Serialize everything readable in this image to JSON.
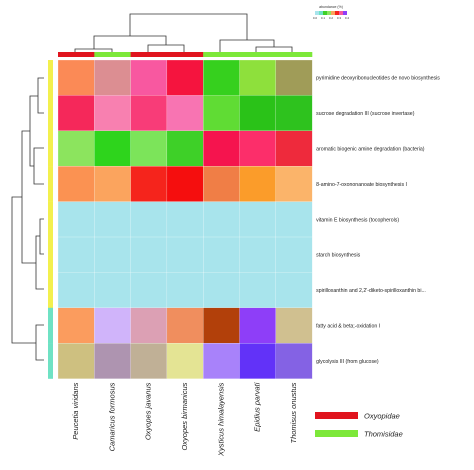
{
  "chart_data": {
    "type": "heatmap",
    "title": "",
    "xlabel": "",
    "ylabel": "",
    "x": [
      "Peucetia viridans",
      "Camaricus formosus",
      "Oxyopes javanus",
      "Oxyopes birmanicus",
      "Xysticus himalayensis",
      "Epidius parvati",
      "Thomisus onustus"
    ],
    "y": [
      "pyrimidine deoxyribonucleotides de novo biosynthesis",
      "sucrose degradation III (sucrose invertase)",
      "aromatic biogenic amine degradation (bacteria)",
      "8-amino-7-oxononanoate biosynthesis I",
      "vitamin E biosynthesis (tocopherols)",
      "starch biosynthesis",
      "spirilloxanthin and 2,2'-diketo-spirilloxanthin bi...",
      "fatty acid & beta;-oxidation I",
      "glycolysis III (from glucose)"
    ],
    "cell_colors": [
      [
        "#fb8a56",
        "#dc8e92",
        "#f858a0",
        "#f5143e",
        "#36d01e",
        "#8ee03c",
        "#a09c58"
      ],
      [
        "#f5285a",
        "#f880b0",
        "#f83c78",
        "#f874b2",
        "#60dc34",
        "#2ac218",
        "#2ec21e"
      ],
      [
        "#8ce45e",
        "#2ed41c",
        "#7ce45a",
        "#3ed028",
        "#f5144e",
        "#fc2e6a",
        "#ee2a3c"
      ],
      [
        "#fb9252",
        "#fba45e",
        "#f5241c",
        "#f50e0e",
        "#f07e46",
        "#fb9c2a",
        "#fbb46a"
      ],
      [
        "#a8e4ec",
        "#a8e4ec",
        "#a8e4ec",
        "#a8e4ec",
        "#a8e4ec",
        "#a8e4ec",
        "#a8e4ec"
      ],
      [
        "#a8e4ec",
        "#a8e4ec",
        "#a8e4ec",
        "#a8e4ec",
        "#a8e4ec",
        "#a8e4ec",
        "#a8e4ec"
      ],
      [
        "#a8e4ec",
        "#a8e4ec",
        "#a8e4ec",
        "#a8e4ec",
        "#a8e4ec",
        "#a8e4ec",
        "#a8e4ec"
      ],
      [
        "#fb9c5e",
        "#d0b4fa",
        "#dca0b4",
        "#f08e5e",
        "#b2400a",
        "#8e3ef8",
        "#d0c090"
      ],
      [
        "#cec080",
        "#ae94b0",
        "#c0b096",
        "#e4e494",
        "#a882fa",
        "#6232f8",
        "#8462e4"
      ]
    ],
    "column_groups": [
      "Oxyopidae",
      "Thomisidae",
      "Oxyopidae",
      "Oxyopidae",
      "Thomisidae",
      "Thomisidae",
      "Thomisidae"
    ],
    "row_groups": [
      "yellow",
      "yellow",
      "yellow",
      "yellow",
      "yellow",
      "yellow",
      "yellow",
      "teal",
      "teal"
    ],
    "group_colors": {
      "Oxyopidae": "#e0141e",
      "Thomisidae": "#7de83a",
      "yellow": "#f3f04e",
      "teal": "#6fe2c4"
    },
    "legend": {
      "items": [
        {
          "label": "Oxyopidae",
          "color": "#e0141e"
        },
        {
          "label": "Thomisidae",
          "color": "#7de83a"
        }
      ],
      "placement": "bottom-right"
    },
    "colorbar": {
      "title": "abundance (%)",
      "ticks": [
        "0.0",
        "0.1",
        "0.2",
        "0.3",
        "0.4"
      ],
      "colors": [
        "#a8e4ec",
        "#6fe2c4",
        "#3ed028",
        "#8ce45e",
        "#fba45e",
        "#f5241c",
        "#f858a0",
        "#8e3ef8"
      ],
      "placement": "top-right"
    }
  }
}
